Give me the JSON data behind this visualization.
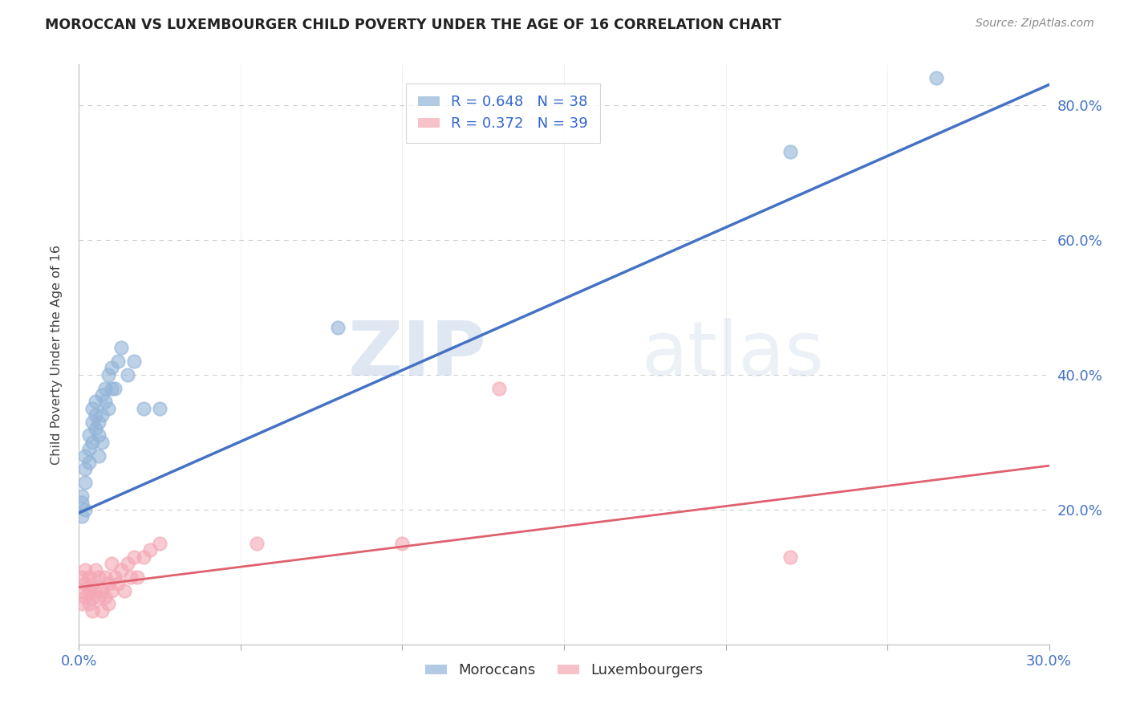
{
  "title": "MOROCCAN VS LUXEMBOURGER CHILD POVERTY UNDER THE AGE OF 16 CORRELATION CHART",
  "source": "Source: ZipAtlas.com",
  "ylabel": "Child Poverty Under the Age of 16",
  "xlim": [
    0.0,
    0.3
  ],
  "ylim": [
    0.0,
    0.86
  ],
  "yticks": [
    0.0,
    0.2,
    0.4,
    0.6,
    0.8
  ],
  "xticks": [
    0.0,
    0.05,
    0.1,
    0.15,
    0.2,
    0.25,
    0.3
  ],
  "legend_r1": "R = 0.648",
  "legend_n1": "N = 38",
  "legend_r2": "R = 0.372",
  "legend_n2": "N = 39",
  "moroccan_color": "#92b4d8",
  "luxembourger_color": "#f4a7b4",
  "moroccan_line_color": "#4472c4",
  "luxembourger_line_color": "#e06070",
  "watermark_zip": "ZIP",
  "watermark_atlas": "atlas",
  "moroccan_x": [
    0.001,
    0.001,
    0.001,
    0.002,
    0.002,
    0.002,
    0.002,
    0.003,
    0.003,
    0.003,
    0.004,
    0.004,
    0.004,
    0.005,
    0.005,
    0.005,
    0.006,
    0.006,
    0.006,
    0.007,
    0.007,
    0.007,
    0.008,
    0.008,
    0.009,
    0.009,
    0.01,
    0.01,
    0.011,
    0.012,
    0.013,
    0.015,
    0.017,
    0.02,
    0.025,
    0.08,
    0.22,
    0.265
  ],
  "moroccan_y": [
    0.19,
    0.21,
    0.22,
    0.2,
    0.24,
    0.26,
    0.28,
    0.27,
    0.29,
    0.31,
    0.3,
    0.33,
    0.35,
    0.32,
    0.34,
    0.36,
    0.28,
    0.31,
    0.33,
    0.3,
    0.34,
    0.37,
    0.36,
    0.38,
    0.35,
    0.4,
    0.38,
    0.41,
    0.38,
    0.42,
    0.44,
    0.4,
    0.42,
    0.35,
    0.35,
    0.47,
    0.73,
    0.84
  ],
  "luxembourger_x": [
    0.001,
    0.001,
    0.001,
    0.002,
    0.002,
    0.002,
    0.003,
    0.003,
    0.003,
    0.004,
    0.004,
    0.004,
    0.005,
    0.005,
    0.006,
    0.006,
    0.007,
    0.007,
    0.008,
    0.008,
    0.009,
    0.009,
    0.01,
    0.01,
    0.011,
    0.012,
    0.013,
    0.014,
    0.015,
    0.016,
    0.017,
    0.018,
    0.02,
    0.022,
    0.025,
    0.055,
    0.1,
    0.13,
    0.22
  ],
  "luxembourger_y": [
    0.08,
    0.1,
    0.06,
    0.09,
    0.07,
    0.11,
    0.06,
    0.08,
    0.1,
    0.05,
    0.07,
    0.09,
    0.08,
    0.11,
    0.07,
    0.1,
    0.05,
    0.08,
    0.07,
    0.1,
    0.06,
    0.09,
    0.08,
    0.12,
    0.1,
    0.09,
    0.11,
    0.08,
    0.12,
    0.1,
    0.13,
    0.1,
    0.13,
    0.14,
    0.15,
    0.15,
    0.15,
    0.38,
    0.13
  ],
  "background_color": "#ffffff",
  "grid_color": "#d0d0d0"
}
